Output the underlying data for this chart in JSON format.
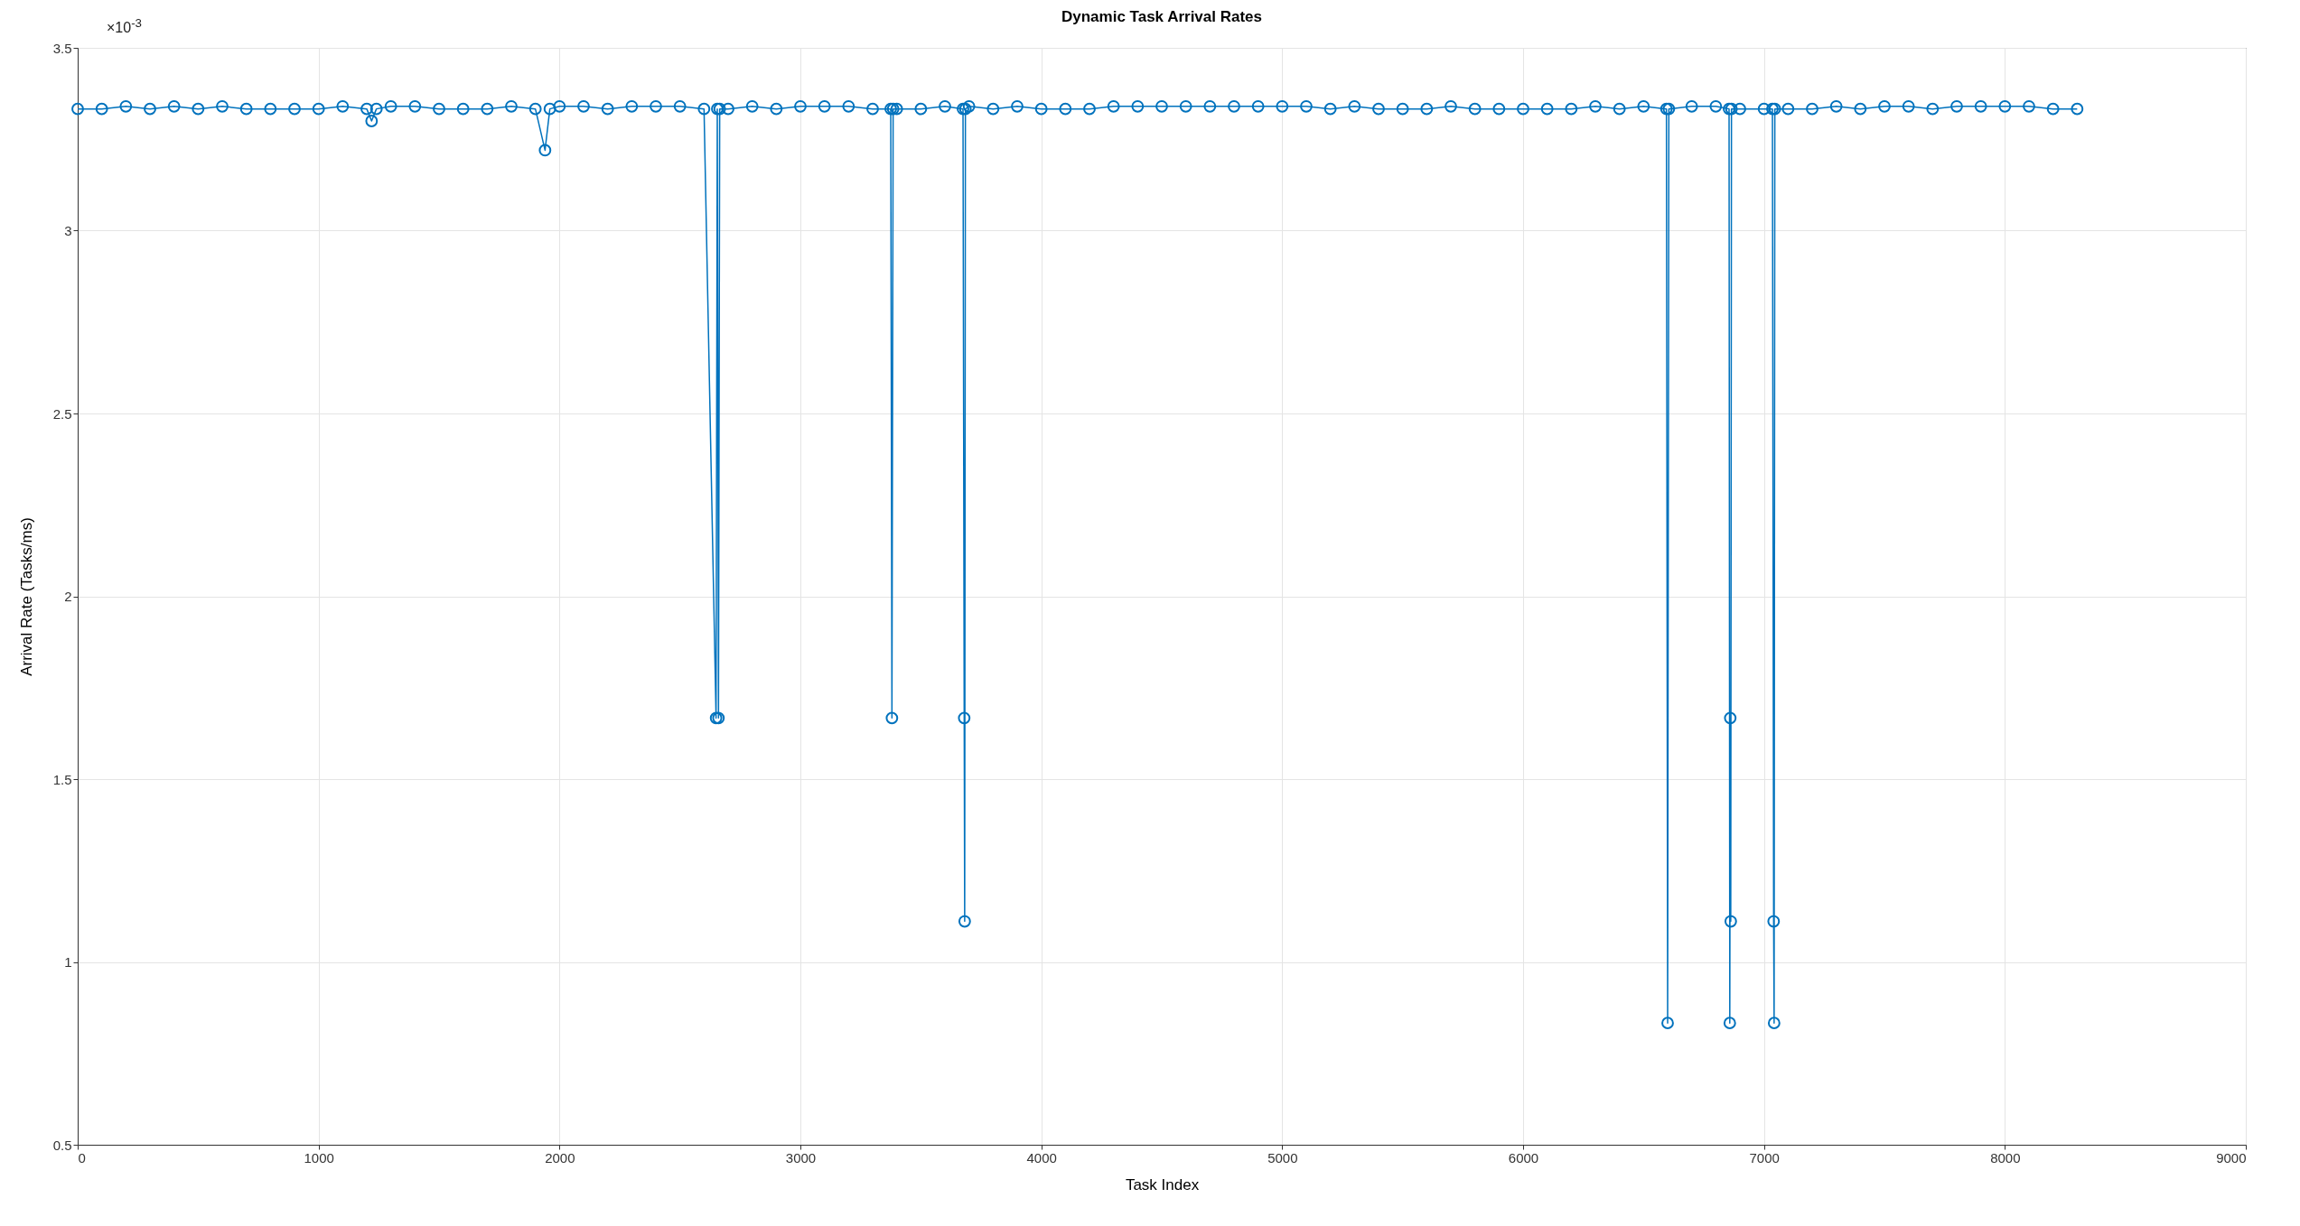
{
  "chart_data": {
    "type": "line",
    "title": "Dynamic Task Arrival Rates",
    "xlabel": "Task Index",
    "ylabel": "Arrival Rate (Tasks/ms)",
    "annotations": [
      "×10$^{-3}$"
    ],
    "x": [
      0,
      100,
      200,
      300,
      400,
      500,
      600,
      700,
      800,
      900,
      1000,
      1100,
      1200,
      1220,
      1240,
      1300,
      1400,
      1500,
      1600,
      1700,
      1800,
      1900,
      1940,
      1960,
      2000,
      2100,
      2200,
      2300,
      2400,
      2500,
      2600,
      2650,
      2655,
      2660,
      2665,
      2700,
      2800,
      2900,
      3000,
      3100,
      3200,
      3300,
      3375,
      3380,
      3385,
      3400,
      3500,
      3600,
      3675,
      3680,
      3682,
      3685,
      3700,
      3800,
      3900,
      4000,
      4100,
      4200,
      4300,
      4400,
      4500,
      4600,
      4700,
      4800,
      4900,
      5000,
      5100,
      5200,
      5300,
      5400,
      5500,
      5600,
      5700,
      5800,
      5900,
      6000,
      6100,
      6200,
      6300,
      6400,
      6500,
      6595,
      6600,
      6605,
      6700,
      6800,
      6855,
      6858,
      6860,
      6862,
      6865,
      6900,
      7000,
      7035,
      7040,
      7042,
      7045,
      7100,
      7200,
      7300,
      7400,
      7500,
      7600,
      7700,
      7800,
      7900,
      8000,
      8100,
      8200,
      8300
    ],
    "series": [
      {
        "color": "#0072bd",
        "values": [
          3.333,
          3.333,
          3.34,
          3.333,
          3.34,
          3.333,
          3.34,
          3.333,
          3.333,
          3.333,
          3.333,
          3.34,
          3.333,
          3.3,
          3.333,
          3.34,
          3.34,
          3.333,
          3.333,
          3.333,
          3.34,
          3.333,
          3.22,
          3.333,
          3.34,
          3.34,
          3.333,
          3.34,
          3.34,
          3.34,
          3.333,
          1.667,
          3.333,
          1.667,
          3.333,
          3.333,
          3.34,
          3.333,
          3.34,
          3.34,
          3.34,
          3.333,
          3.333,
          1.667,
          3.333,
          3.333,
          3.333,
          3.34,
          3.333,
          1.667,
          1.111,
          3.333,
          3.34,
          3.333,
          3.34,
          3.333,
          3.333,
          3.333,
          3.34,
          3.34,
          3.34,
          3.34,
          3.34,
          3.34,
          3.34,
          3.34,
          3.34,
          3.333,
          3.34,
          3.333,
          3.333,
          3.333,
          3.34,
          3.333,
          3.333,
          3.333,
          3.333,
          3.333,
          3.34,
          3.333,
          3.34,
          3.333,
          0.833,
          3.333,
          3.34,
          3.34,
          3.333,
          0.833,
          1.667,
          1.111,
          3.333,
          3.333,
          3.333,
          3.333,
          1.111,
          0.833,
          3.333,
          3.333,
          3.333,
          3.34,
          3.333,
          3.34,
          3.34,
          3.333,
          3.34,
          3.34,
          3.34,
          3.34,
          3.333,
          3.333
        ]
      }
    ],
    "xlim": [
      0,
      9000
    ],
    "xticks": [
      0,
      1000,
      2000,
      3000,
      4000,
      5000,
      6000,
      7000,
      8000,
      9000
    ],
    "ylim": [
      0.5,
      3.5
    ],
    "yticks": [
      0.5,
      1,
      1.5,
      2,
      2.5,
      3,
      3.5
    ],
    "grid": true,
    "marker": "circle",
    "line_style": "solid"
  }
}
